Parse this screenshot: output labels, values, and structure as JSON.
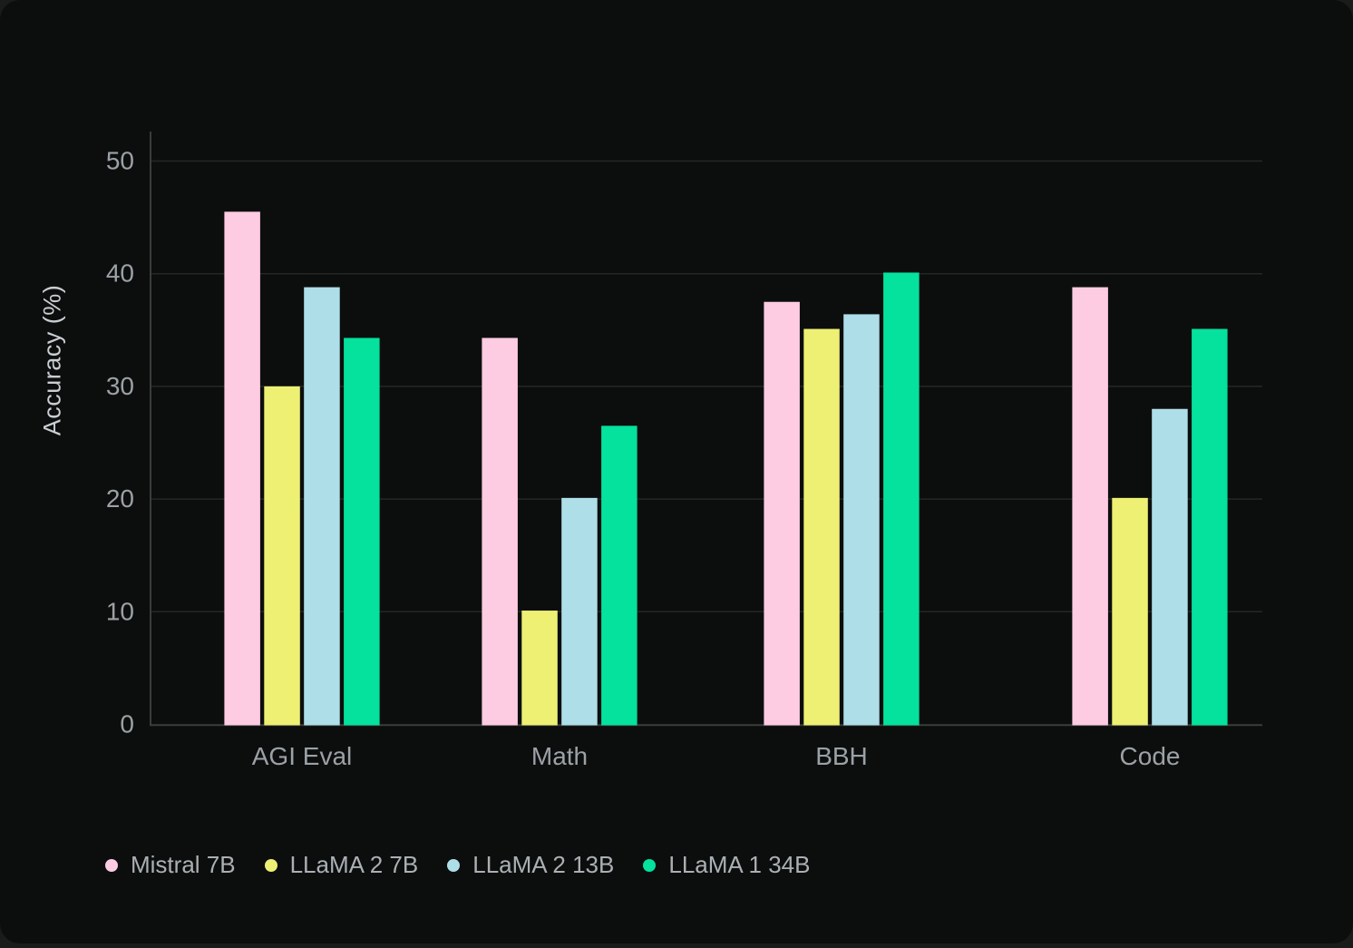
{
  "theme": {
    "page_background": "#1A1C1B",
    "card_background": "#0C0E0D",
    "gridline_color": "#242726",
    "axis_line_color": "#3A3D3B",
    "tick_text_color": "#9BA1A6",
    "category_text_color": "#9BA1A6",
    "legend_text_color": "#ABB0B5",
    "axis_title_color": "#C9CED3"
  },
  "chart_data": {
    "type": "bar",
    "title": "",
    "xlabel": "",
    "ylabel": "Accuracy (%)",
    "categories": [
      "AGI Eval",
      "Math",
      "BBH",
      "Code"
    ],
    "series": [
      {
        "name": "Mistral 7B",
        "color": "#FDCBE2",
        "values": [
          45.5,
          34.3,
          37.5,
          38.8
        ]
      },
      {
        "name": "LLaMA 2 7B",
        "color": "#EDF073",
        "values": [
          30.0,
          10.1,
          35.1,
          20.1
        ]
      },
      {
        "name": "LLaMA 2 13B",
        "color": "#AEDFE9",
        "values": [
          38.8,
          20.1,
          36.4,
          28.0
        ]
      },
      {
        "name": "LLaMA 1 34B",
        "color": "#04E29D",
        "values": [
          34.3,
          26.5,
          40.1,
          35.1
        ]
      }
    ],
    "ylim": [
      0,
      52.6
    ],
    "yticks": [
      0,
      10,
      20,
      30,
      40,
      50
    ],
    "grid": true,
    "legend_position": "bottom-left"
  }
}
